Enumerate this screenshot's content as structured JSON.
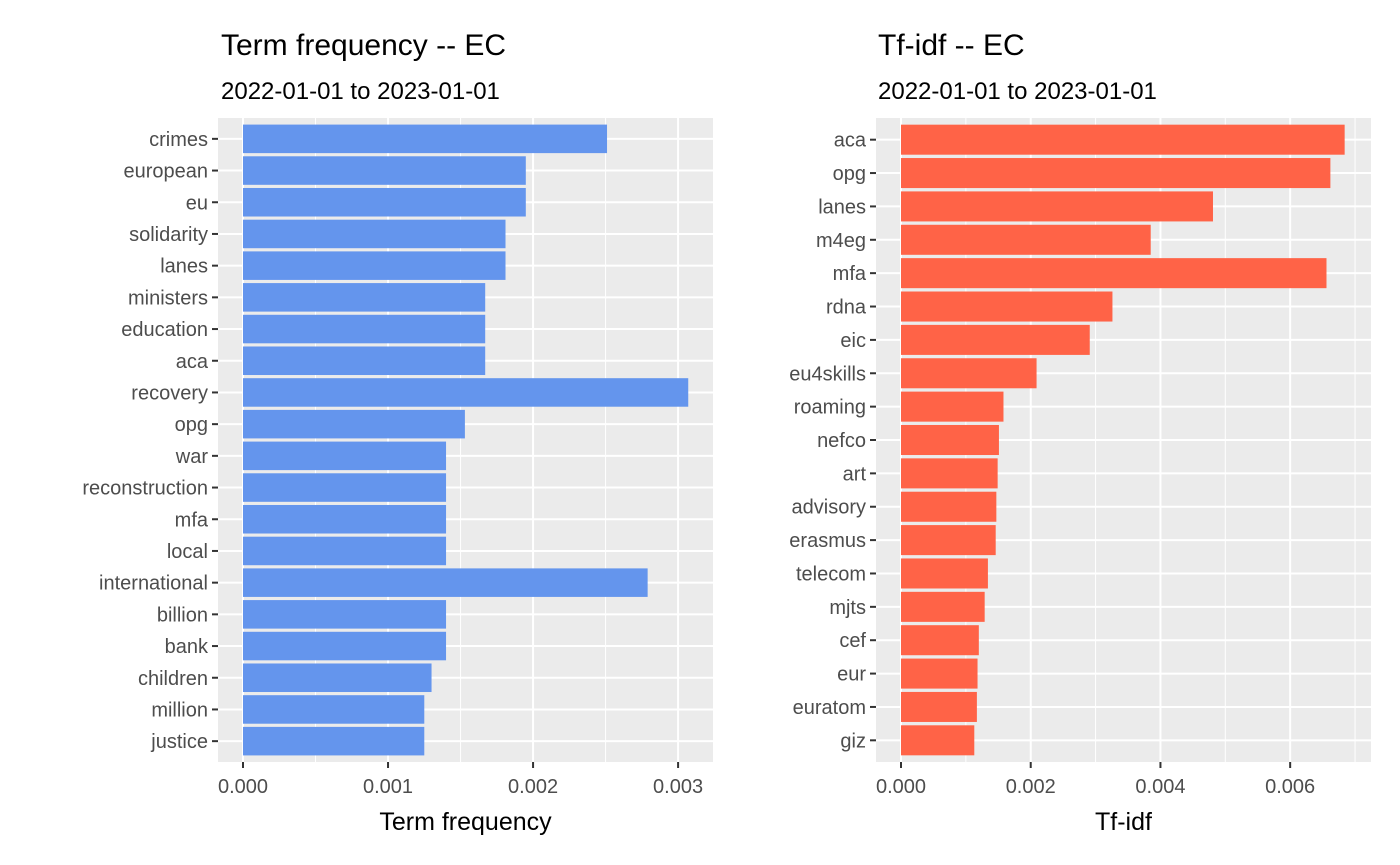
{
  "chart_data": [
    {
      "type": "bar",
      "orientation": "horizontal",
      "title": "Term frequency -- EC",
      "subtitle": "2022-01-01 to 2023-01-01",
      "xlabel": "Term frequency",
      "ylabel": "",
      "xlim": [
        0,
        0.00322
      ],
      "xticks": [
        0.0,
        0.001,
        0.002,
        0.003
      ],
      "xtick_labels": [
        "0.000",
        "0.001",
        "0.002",
        "0.003"
      ],
      "bar_color": "#6495ED",
      "grid": true,
      "categories": [
        "crimes",
        "european",
        "eu",
        "solidarity",
        "lanes",
        "ministers",
        "education",
        "aca",
        "recovery",
        "opg",
        "war",
        "reconstruction",
        "mfa",
        "local",
        "international",
        "billion",
        "bank",
        "children",
        "million",
        "justice"
      ],
      "values": [
        0.00251,
        0.00195,
        0.00195,
        0.00181,
        0.00181,
        0.00167,
        0.00167,
        0.00167,
        0.00307,
        0.00153,
        0.0014,
        0.0014,
        0.0014,
        0.0014,
        0.00279,
        0.0014,
        0.0014,
        0.0013,
        0.00125,
        0.00125
      ]
    },
    {
      "type": "bar",
      "orientation": "horizontal",
      "title": "Tf-idf -- EC",
      "subtitle": "2022-01-01 to 2023-01-01",
      "xlabel": "Tf-idf",
      "ylabel": "",
      "xlim": [
        0,
        0.0072
      ],
      "xticks": [
        0.0,
        0.002,
        0.004,
        0.006
      ],
      "xtick_labels": [
        "0.000",
        "0.002",
        "0.004",
        "0.006"
      ],
      "bar_color": "#FF6347",
      "grid": true,
      "categories": [
        "aca",
        "opg",
        "lanes",
        "m4eg",
        "mfa",
        "rdna",
        "eic",
        "eu4skills",
        "roaming",
        "nefco",
        "art",
        "advisory",
        "erasmus",
        "telecom",
        "mjts",
        "cef",
        "eur",
        "euratom",
        "giz"
      ],
      "values": [
        0.00684,
        0.00662,
        0.00481,
        0.00385,
        0.00656,
        0.00326,
        0.00291,
        0.00209,
        0.00158,
        0.00151,
        0.00149,
        0.00147,
        0.00146,
        0.00134,
        0.00129,
        0.0012,
        0.00118,
        0.00117,
        0.00113
      ]
    }
  ]
}
